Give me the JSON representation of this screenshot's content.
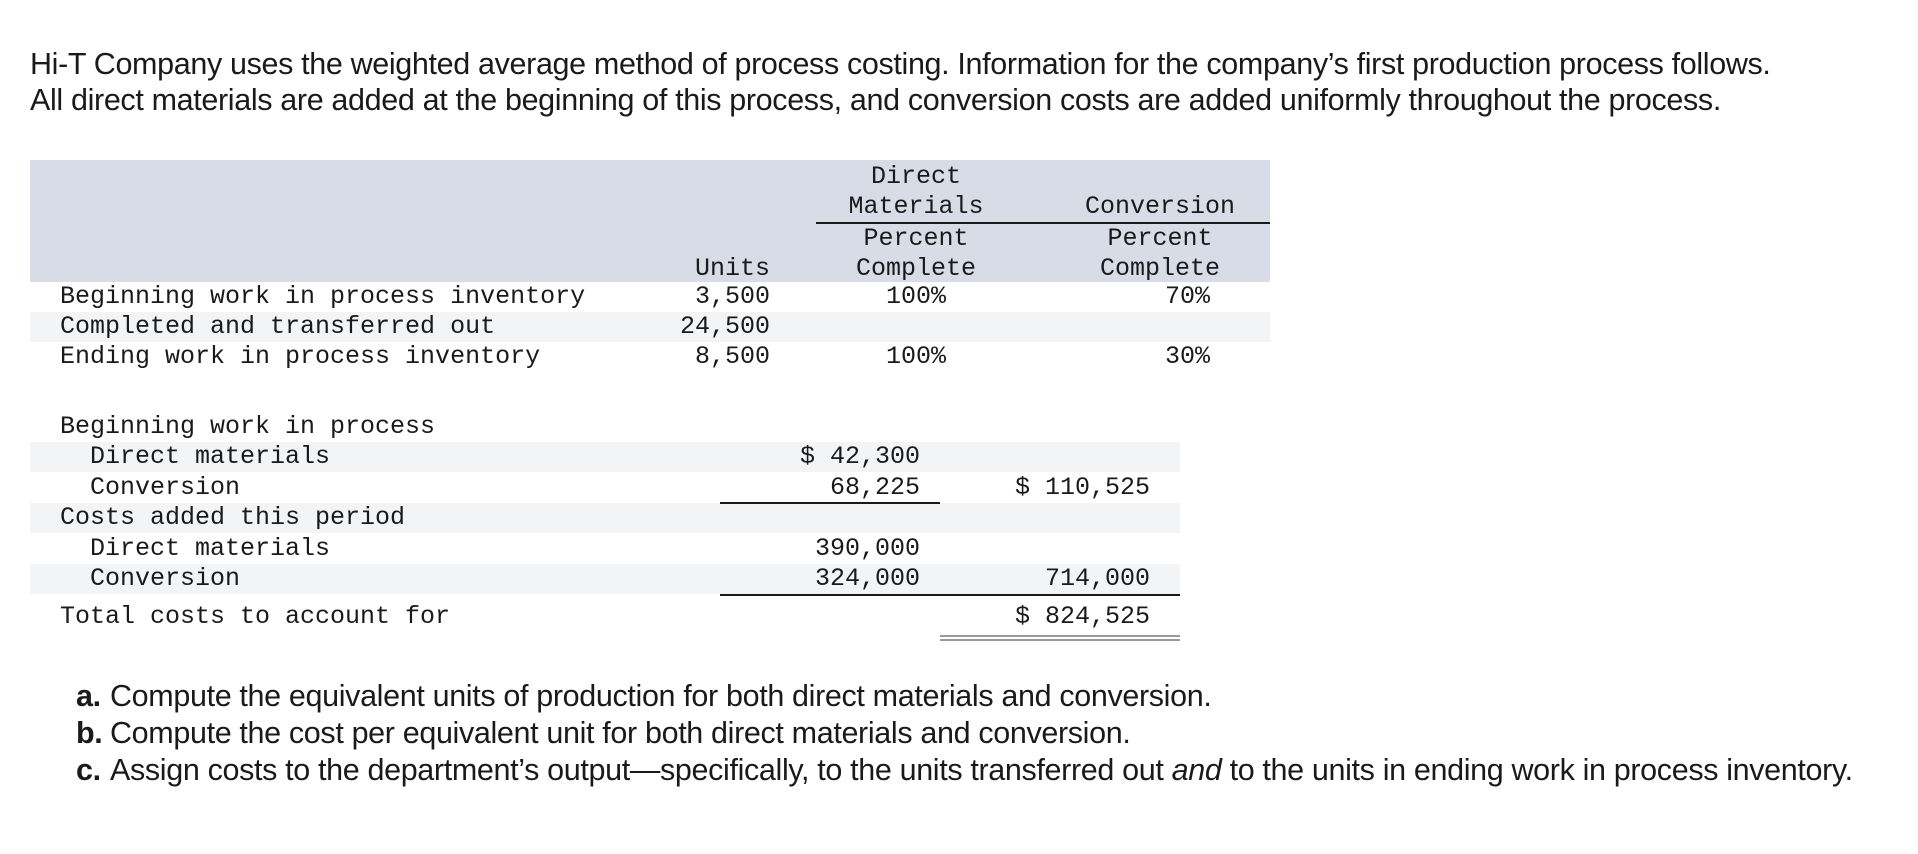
{
  "intro": {
    "line1": "Hi-T Company uses the weighted average method of process costing. Information for the company’s first production process follows.",
    "line2": "All direct materials are added at the beginning of this process, and conversion costs are added uniformly throughout the process."
  },
  "units_table": {
    "headers": {
      "units": "Units",
      "dm_top": "Direct",
      "dm_mid": "Materials",
      "dm_pct1": "Percent",
      "dm_pct2": "Complete",
      "conv_top": "Conversion",
      "conv_pct1": "Percent",
      "conv_pct2": "Complete"
    },
    "rows": [
      {
        "label": "Beginning work in process inventory",
        "units": "3,500",
        "dm": "100%",
        "conv": "70%"
      },
      {
        "label": "Completed and transferred out",
        "units": "24,500",
        "dm": "",
        "conv": ""
      },
      {
        "label": "Ending work in process inventory",
        "units": "8,500",
        "dm": "100%",
        "conv": "30%"
      }
    ]
  },
  "cost_table": {
    "rows": [
      {
        "label": "Beginning work in process",
        "col1": "",
        "col2": ""
      },
      {
        "label": "Direct materials",
        "col1": "$ 42,300",
        "col2": ""
      },
      {
        "label": "Conversion",
        "col1": "68,225",
        "col2": "$ 110,525"
      },
      {
        "label": "Costs added this period",
        "col1": "",
        "col2": ""
      },
      {
        "label": "Direct materials",
        "col1": "390,000",
        "col2": ""
      },
      {
        "label": "Conversion",
        "col1": "324,000",
        "col2": "714,000"
      },
      {
        "label": "Total costs to account for",
        "col1": "",
        "col2": "$ 824,525"
      }
    ]
  },
  "questions": [
    {
      "label": "a.",
      "text": "Compute the equivalent units of production for both direct materials and conversion."
    },
    {
      "label": "b.",
      "text": "Compute the cost per equivalent unit for both direct materials and conversion."
    },
    {
      "label": "c.",
      "text_before": "Assign costs to the department’s output—specifically, to the units transferred out ",
      "text_em": "and",
      "text_after": " to the units in ending work in process inventory."
    }
  ],
  "colors": {
    "header_bg": "#d8dce6",
    "band_bg": "#f3f4f6",
    "text": "#1a1a1a"
  }
}
